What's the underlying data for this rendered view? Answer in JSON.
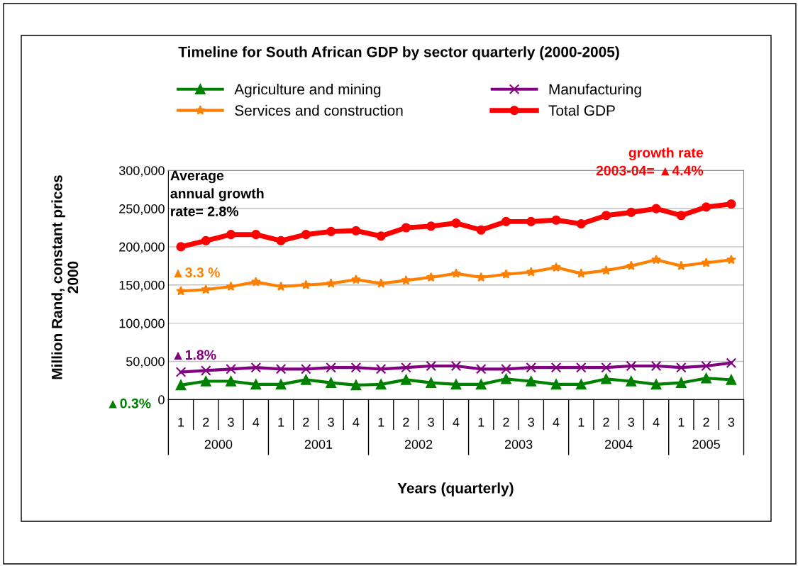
{
  "chart_data": {
    "type": "line",
    "title": "Timeline for South African GDP by sector quarterly (2000-2005)",
    "xlabel": "Years (quarterly)",
    "ylabel": "Million Rand, constant prices\n2000",
    "categories": [
      "1",
      "2",
      "3",
      "4",
      "1",
      "2",
      "3",
      "4",
      "1",
      "2",
      "3",
      "4",
      "1",
      "2",
      "3",
      "4",
      "1",
      "2",
      "3",
      "4",
      "1",
      "2",
      "3"
    ],
    "series": [
      {
        "name": "Agriculture and mining",
        "color": "#008000",
        "marker": "triangle",
        "values": [
          19000,
          24000,
          24000,
          20000,
          20000,
          26000,
          22000,
          19000,
          20000,
          26000,
          22000,
          20000,
          20000,
          27000,
          24000,
          20000,
          20000,
          27000,
          24000,
          20000,
          22000,
          28000,
          26000
        ]
      },
      {
        "name": "Manufacturing",
        "color": "#800080",
        "marker": "cross",
        "values": [
          36000,
          38000,
          40000,
          42000,
          40000,
          40000,
          42000,
          42000,
          40000,
          42000,
          44000,
          44000,
          40000,
          40000,
          42000,
          42000,
          42000,
          42000,
          44000,
          44000,
          42000,
          44000,
          48000
        ]
      },
      {
        "name": "Services and construction",
        "color": "#ff7f00",
        "marker": "star",
        "values": [
          142000,
          144000,
          148000,
          154000,
          148000,
          150000,
          152000,
          157000,
          152000,
          156000,
          160000,
          165000,
          160000,
          164000,
          167000,
          173000,
          165000,
          169000,
          175000,
          183000,
          175000,
          179000,
          183000
        ]
      },
      {
        "name": "Total GDP",
        "color": "#ff0000",
        "marker": "circle",
        "values": [
          200000,
          208000,
          216000,
          216000,
          208000,
          216000,
          220000,
          221000,
          214000,
          225000,
          227000,
          231000,
          222000,
          233000,
          233000,
          235000,
          230000,
          241000,
          245000,
          250000,
          241000,
          252000,
          256000
        ]
      }
    ],
    "ylim": [
      0,
      300000
    ],
    "yticks": [
      0,
      {
        "value": 50000,
        "label": "50,000"
      },
      {
        "value": 100000,
        "label": "100,000"
      },
      {
        "value": 150000,
        "label": "150,000"
      },
      {
        "value": 200000,
        "label": "200,000"
      },
      {
        "value": 250000,
        "label": "250,000"
      },
      {
        "value": 300000,
        "label": "300,000"
      }
    ],
    "grid": "y",
    "legend": "top",
    "line_style": "solid",
    "annotations": [
      "2000",
      "2001",
      "2002",
      "2003",
      "2004",
      "2005",
      "Average\nannual growth\nrate= 2.8%",
      "growth rate\n2003-04= ▲4.4%",
      "▲3.3 %",
      "▲1.8%",
      "▲0.3%"
    ]
  }
}
